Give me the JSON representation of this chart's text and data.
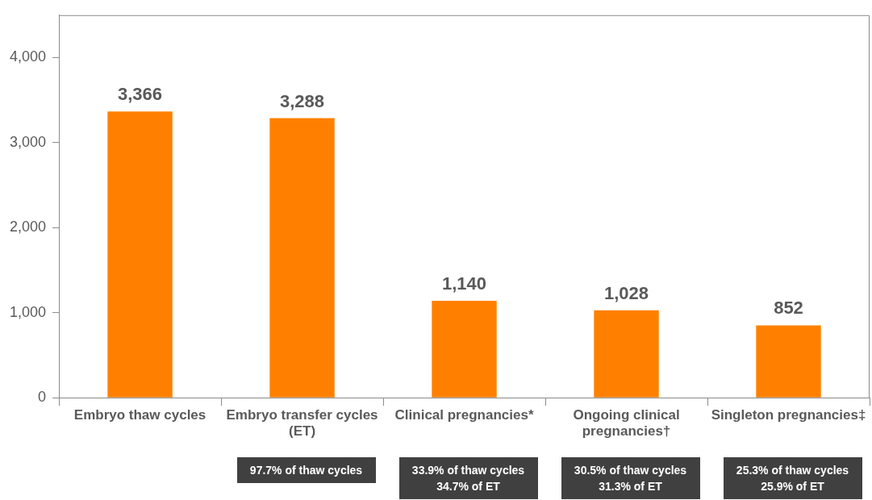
{
  "chart_data": {
    "type": "bar",
    "categories": [
      "Embryo thaw cycles",
      "Embryo transfer cycles (ET)",
      "Clinical pregnancies*",
      "Ongoing clinical pregnancies†",
      "Singleton pregnancies‡"
    ],
    "values": [
      3366,
      3288,
      1140,
      1028,
      852
    ],
    "value_labels": [
      "3,366",
      "3,288",
      "1,140",
      "1,028",
      "852"
    ],
    "color": "#ff8000",
    "ylim": [
      0,
      4500
    ],
    "yticks": [
      0,
      {
        "value": 1000,
        "label": "1,000"
      },
      {
        "value": 2000,
        "label": "2,000"
      },
      {
        "value": 3000,
        "label": "3,000"
      },
      {
        "value": 4000,
        "label": "4,000"
      }
    ],
    "annotations": [
      "97.7% of thaw cycles",
      "33.9% of thaw cycles\n34.7% of ET",
      "30.5% of thaw cycles\n31.3% of ET",
      "25.3% of thaw cycles\n25.9% of ET"
    ]
  }
}
